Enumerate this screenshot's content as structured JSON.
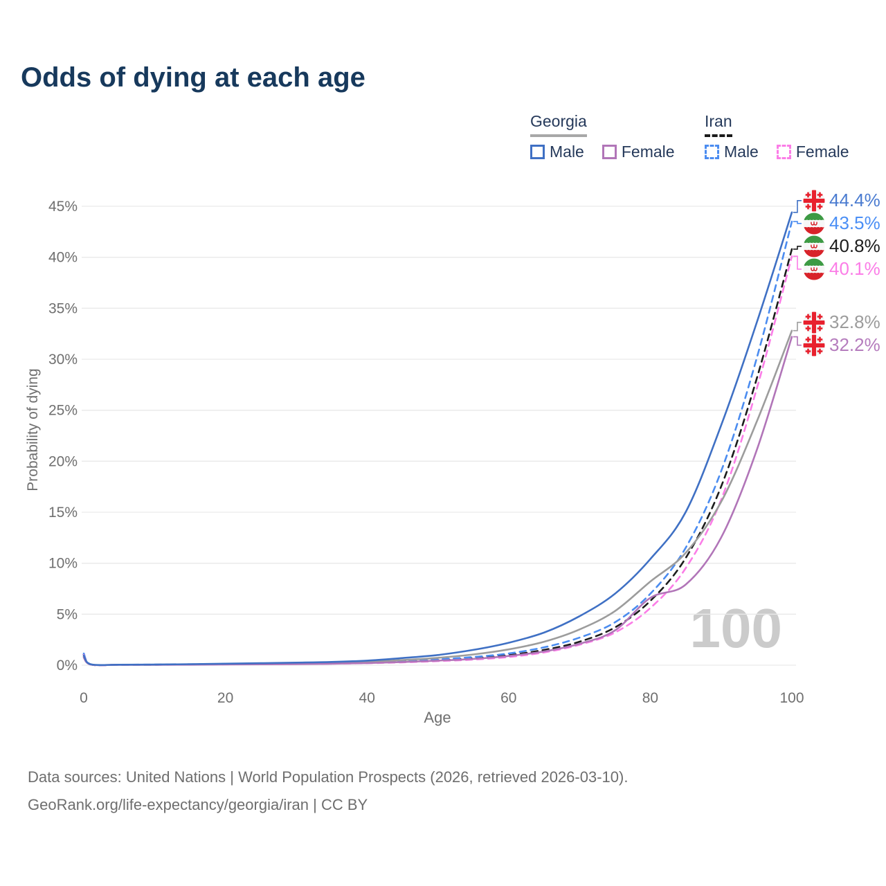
{
  "page": {
    "title": "Odds of dying at each age",
    "watermark": "100"
  },
  "legend": {
    "groups": [
      {
        "label": "Georgia",
        "underline_style": "solid",
        "underline_color": "#a8a8a8",
        "items": [
          {
            "label": "Male",
            "series": "georgia_male"
          },
          {
            "label": "Female",
            "series": "georgia_female"
          }
        ]
      },
      {
        "label": "Iran",
        "underline_style": "dashed",
        "underline_color": "#1b1b1b",
        "items": [
          {
            "label": "Male",
            "series": "iran_male"
          },
          {
            "label": "Female",
            "series": "iran_female"
          }
        ]
      }
    ]
  },
  "chart_data": {
    "type": "line",
    "title": "Odds of dying at each age",
    "xlabel": "Age",
    "ylabel": "Probability of dying",
    "xlim": [
      0,
      100
    ],
    "ylim": [
      0,
      45
    ],
    "xticks": [
      0,
      20,
      40,
      60,
      80,
      100
    ],
    "ytick_labels": [
      "0%",
      "5%",
      "10%",
      "15%",
      "20%",
      "25%",
      "30%",
      "35%",
      "40%",
      "45%"
    ],
    "ytick_values": [
      0,
      5,
      10,
      15,
      20,
      25,
      30,
      35,
      40,
      45
    ],
    "grid": "horizontal",
    "legend_position": "top-right",
    "x": [
      0,
      1,
      5,
      10,
      15,
      20,
      25,
      30,
      35,
      40,
      45,
      50,
      55,
      60,
      65,
      70,
      75,
      80,
      85,
      90,
      95,
      100
    ],
    "series": [
      {
        "id": "iran_all",
        "name": "Iran — Both sexes",
        "color": "#1c1c1c",
        "dashed": true,
        "values": [
          1.05,
          0.075,
          0.045,
          0.05,
          0.08,
          0.1,
          0.13,
          0.16,
          0.2,
          0.26,
          0.35,
          0.48,
          0.68,
          0.98,
          1.5,
          2.3,
          3.7,
          6.3,
          10.5,
          17.5,
          28.0,
          40.8
        ],
        "end_label": {
          "text": "40.8%",
          "flag": "iran",
          "color": "#1c1c1c"
        }
      },
      {
        "id": "iran_male",
        "name": "Iran — Male",
        "color": "#4b8cf0",
        "dashed": true,
        "values": [
          1.15,
          0.08,
          0.05,
          0.06,
          0.09,
          0.13,
          0.17,
          0.21,
          0.25,
          0.31,
          0.42,
          0.57,
          0.8,
          1.15,
          1.75,
          2.7,
          4.2,
          7.0,
          11.5,
          19.0,
          30.0,
          43.5
        ],
        "end_label": {
          "text": "43.5%",
          "flag": "iran",
          "color": "#4b8ff5"
        }
      },
      {
        "id": "iran_female",
        "name": "Iran — Female",
        "color": "#fb7de7",
        "dashed": true,
        "values": [
          1.0,
          0.07,
          0.04,
          0.045,
          0.06,
          0.08,
          0.1,
          0.12,
          0.15,
          0.2,
          0.28,
          0.4,
          0.55,
          0.8,
          1.25,
          2.0,
          3.2,
          5.6,
          9.5,
          16.2,
          27.0,
          40.1
        ],
        "end_label": {
          "text": "40.1%",
          "flag": "iran",
          "color": "#fb7de7"
        }
      },
      {
        "id": "georgia_all",
        "name": "Georgia — Both sexes",
        "color": "#9c9c9c",
        "dashed": false,
        "values": [
          0.85,
          0.07,
          0.045,
          0.05,
          0.08,
          0.11,
          0.15,
          0.18,
          0.23,
          0.33,
          0.5,
          0.72,
          1.05,
          1.55,
          2.3,
          3.5,
          5.3,
          8.2,
          11.0,
          16.0,
          23.8,
          32.8
        ],
        "end_label": {
          "text": "32.8%",
          "flag": "georgia",
          "color": "#9c9c9c"
        }
      },
      {
        "id": "georgia_female",
        "name": "Georgia — Female",
        "color": "#b175b8",
        "dashed": false,
        "values": [
          0.75,
          0.06,
          0.04,
          0.04,
          0.05,
          0.07,
          0.09,
          0.11,
          0.14,
          0.21,
          0.31,
          0.45,
          0.62,
          0.9,
          1.35,
          2.1,
          3.4,
          6.6,
          7.9,
          12.5,
          21.0,
          32.2
        ],
        "end_label": {
          "text": "32.2%",
          "flag": "georgia",
          "color": "#b57cbd"
        }
      },
      {
        "id": "georgia_male",
        "name": "Georgia — Male",
        "color": "#3f70c4",
        "dashed": false,
        "values": [
          0.95,
          0.08,
          0.05,
          0.06,
          0.1,
          0.15,
          0.2,
          0.25,
          0.32,
          0.45,
          0.7,
          1.0,
          1.5,
          2.2,
          3.2,
          4.8,
          7.0,
          10.4,
          15.0,
          23.5,
          33.5,
          44.4
        ],
        "end_label": {
          "text": "44.4%",
          "flag": "georgia",
          "color": "#4a7bd0"
        }
      }
    ]
  },
  "footer": {
    "line1": "Data sources: United Nations | World Population Prospects (2026, retrieved 2026-03-10).",
    "line2": "GeoRank.org/life-expectancy/georgia/iran | CC BY"
  }
}
